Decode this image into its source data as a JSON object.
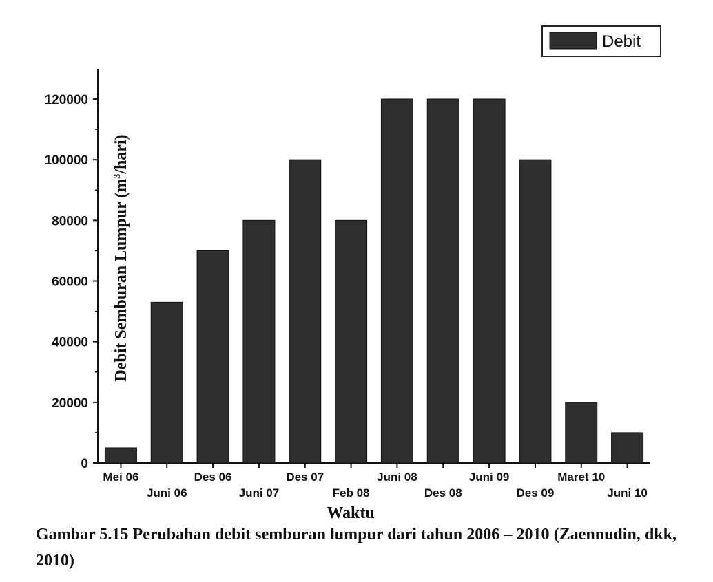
{
  "chart_data": {
    "type": "bar",
    "categories": [
      "Mei 06",
      "Juni 06",
      "Des 06",
      "Juni 07",
      "Des 07",
      "Feb 08",
      "Juni 08",
      "Des 08",
      "Juni 09",
      "Des 09",
      "Maret 10",
      "Juni 10"
    ],
    "series": [
      {
        "name": "Debit",
        "values": [
          5000,
          53000,
          70000,
          80000,
          100000,
          80000,
          120000,
          120000,
          120000,
          100000,
          20000,
          10000
        ]
      }
    ],
    "xlabel": "Waktu",
    "ylabel": "Debit Semburan Lumpur (m",
    "ylabel_sup": "3",
    "ylabel_tail": "/hari)",
    "ylim": [
      0,
      130000
    ],
    "yticks": [
      "0",
      "20000",
      "40000",
      "60000",
      "80000",
      "100000",
      "120000"
    ],
    "grid": false,
    "legend_position": "top-right",
    "bar_color": "#2e2e2e"
  },
  "caption": "Gambar 5.15 Perubahan debit semburan lumpur dari tahun 2006 – 2010 (Zaennudin, dkk, 2010)"
}
